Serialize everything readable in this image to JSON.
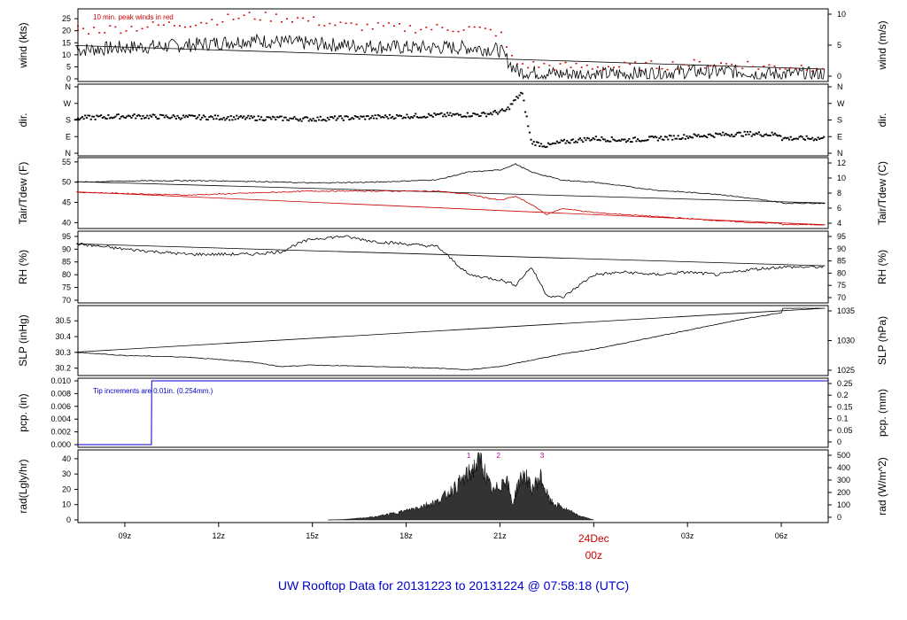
{
  "title": "UW Rooftop Data for 20131223  to  20131224 @ 07:58:18  (UTC)",
  "colors": {
    "primary": "#000000",
    "peak": "#cc0000",
    "precip": "#0000cc",
    "annot": "#aa00aa",
    "title": "#0000cc",
    "date": "#cc0000"
  },
  "time_axis": {
    "start": "2013-12-23 07:30 UTC",
    "end": "2013-12-24 07:30 UTC",
    "ticks": [
      "09z",
      "12z",
      "15z",
      "18z",
      "21z",
      "",
      "03z",
      "06z"
    ],
    "date_label": "24Dec",
    "date_sublabel": "00z"
  },
  "chart_data": [
    {
      "type": "line",
      "ylabel": "wind (kts)",
      "ylabel_right": "wind (m/s)",
      "ylim": [
        0,
        28
      ],
      "yticks": [
        0,
        5,
        10,
        15,
        20,
        25
      ],
      "yticks_right": [
        0,
        5,
        10
      ],
      "annotation": "10 min. peak winds in red",
      "series": [
        {
          "name": "wind speed",
          "hours_utc": [
            7.5,
            9,
            11,
            13,
            14.5,
            16,
            18,
            20,
            21,
            21.4,
            21.6,
            23,
            1,
            3,
            5,
            7.5
          ],
          "values": [
            12,
            13,
            14,
            16,
            15,
            14,
            13,
            13,
            12,
            5,
            3,
            2,
            2,
            3,
            3,
            2
          ]
        },
        {
          "name": "peak wind",
          "hours_utc": [
            7.5,
            9,
            11,
            13,
            14.5,
            16,
            18,
            20,
            21,
            21.4,
            21.6,
            23,
            1,
            3,
            5,
            7.5
          ],
          "values": [
            20,
            21,
            23,
            26,
            25,
            22,
            21,
            21,
            19,
            8,
            6,
            5,
            5,
            6,
            6,
            5
          ]
        }
      ]
    },
    {
      "type": "scatter",
      "ylabel": "dir.",
      "ylabel_right": "dir.",
      "yticks": [
        "N",
        "E",
        "S",
        "W",
        "N"
      ],
      "series": [
        {
          "name": "wind direction",
          "hours_utc": [
            7.5,
            9,
            11,
            13,
            15,
            17,
            19,
            20.5,
            21.2,
            21.5,
            21.7,
            22,
            22.5,
            23,
            0,
            1,
            2,
            3,
            4,
            5,
            6,
            7.5
          ],
          "values": [
            190,
            200,
            195,
            190,
            185,
            195,
            205,
            210,
            230,
            290,
            330,
            60,
            40,
            60,
            80,
            70,
            80,
            90,
            100,
            105,
            100,
            80
          ]
        }
      ]
    },
    {
      "type": "line",
      "ylabel": "Tair/Tdew (F)",
      "ylabel_right": "Tair/Tdew (C)",
      "ylim": [
        39.2,
        55.4
      ],
      "yticks": [
        40,
        45,
        50,
        55
      ],
      "yticks_right": [
        4,
        6,
        8,
        10,
        12
      ],
      "series": [
        {
          "name": "Tair",
          "hours_utc": [
            7.5,
            9,
            11,
            13,
            15,
            17,
            19,
            20,
            21,
            21.5,
            22,
            22.5,
            23,
            0,
            1,
            2,
            3,
            4,
            5,
            6,
            7.5
          ],
          "values": [
            50.0,
            50.3,
            50.4,
            50.2,
            49.8,
            50.0,
            50.6,
            52.5,
            53.0,
            54.5,
            52.5,
            51.5,
            50.5,
            50.0,
            49.0,
            48.0,
            47.5,
            47.0,
            46.0,
            45.0,
            44.8
          ]
        },
        {
          "name": "Tdew",
          "hours_utc": [
            7.5,
            9,
            11,
            13,
            15,
            17,
            19,
            20,
            21,
            21.5,
            22,
            22.5,
            23,
            0,
            1,
            2,
            3,
            4,
            5,
            6,
            7.5
          ],
          "values": [
            47.5,
            47.2,
            46.8,
            47.3,
            47.8,
            47.8,
            47.8,
            47.0,
            45.5,
            46.5,
            44.5,
            42.0,
            43.5,
            42.5,
            42.0,
            41.5,
            41.0,
            40.5,
            40.0,
            39.8,
            39.5
          ]
        }
      ]
    },
    {
      "type": "line",
      "ylabel": "RH (%)",
      "ylabel_right": "RH (%)",
      "ylim": [
        70,
        96
      ],
      "yticks": [
        70,
        75,
        80,
        85,
        90,
        95
      ],
      "yticks_right": [
        70,
        75,
        80,
        85,
        90,
        95
      ],
      "series": [
        {
          "name": "RH",
          "hours_utc": [
            7.5,
            9,
            11,
            13,
            14,
            14.5,
            15,
            16,
            17,
            18,
            19,
            20,
            21,
            21.5,
            22,
            22.5,
            23,
            0,
            1,
            2,
            3,
            4,
            5,
            6,
            7.5
          ],
          "values": [
            92,
            90,
            88,
            88,
            89,
            92,
            94,
            95,
            93,
            92,
            91,
            80,
            78,
            76,
            83,
            72,
            71,
            80,
            81,
            80,
            81,
            80,
            82,
            83,
            83
          ]
        }
      ]
    },
    {
      "type": "line",
      "ylabel": "SLP (inHg)",
      "ylabel_right": "SLP (hPa)",
      "ylim": [
        30.17,
        30.58
      ],
      "yticks": [
        30.2,
        30.3,
        30.4,
        30.5
      ],
      "yticks_right": [
        1025,
        1030,
        1035
      ],
      "series": [
        {
          "name": "SLP",
          "hours_utc": [
            7.5,
            9,
            11,
            13,
            14,
            15,
            17,
            19,
            20,
            21,
            22,
            23,
            0,
            1,
            2,
            3,
            4,
            5,
            6,
            7.5
          ],
          "values": [
            30.3,
            30.28,
            30.27,
            30.24,
            30.21,
            30.22,
            30.21,
            30.2,
            30.19,
            30.21,
            30.25,
            30.29,
            30.32,
            30.36,
            30.4,
            30.44,
            30.48,
            30.52,
            30.55,
            30.58
          ]
        }
      ]
    },
    {
      "type": "line",
      "ylabel": "pcp. (in)",
      "ylabel_right": "pcp. (mm)",
      "ylim": [
        0,
        0.01
      ],
      "yticks": [
        0.0,
        0.002,
        0.004,
        0.006,
        0.008,
        0.01
      ],
      "ytick_labels": [
        "0.000",
        "0.002",
        "0.004",
        "0.006",
        "0.008",
        "0.010"
      ],
      "yticks_right": [
        0,
        0.05,
        0.1,
        0.15,
        0.2,
        0.25
      ],
      "annotation": "Tip increments are 0.01in. (0.254mm.)",
      "series": [
        {
          "name": "precip",
          "hours_utc": [
            7.5,
            9.85,
            9.86,
            7.5
          ],
          "values": [
            0.0,
            0.0,
            0.01,
            0.01
          ]
        }
      ]
    },
    {
      "type": "area",
      "ylabel": "rad(Lgly/hr)",
      "ylabel_right": "rad (W/m^2)",
      "ylim": [
        0,
        44
      ],
      "yticks": [
        0,
        10,
        20,
        30,
        40
      ],
      "yticks_right": [
        0,
        100,
        200,
        300,
        400,
        500
      ],
      "markers": [
        "1",
        "2",
        "3"
      ],
      "series": [
        {
          "name": "solar radiation",
          "hours_utc": [
            15.5,
            16,
            17,
            18,
            19,
            19.5,
            20,
            20.4,
            20.6,
            20.8,
            21.2,
            21.4,
            21.6,
            21.8,
            22,
            22.3,
            22.6,
            23,
            23.5,
            0
          ],
          "values": [
            0,
            0.3,
            2,
            6,
            12,
            20,
            30,
            40,
            25,
            18,
            28,
            10,
            25,
            30,
            20,
            28,
            12,
            8,
            3,
            0
          ]
        }
      ]
    }
  ]
}
